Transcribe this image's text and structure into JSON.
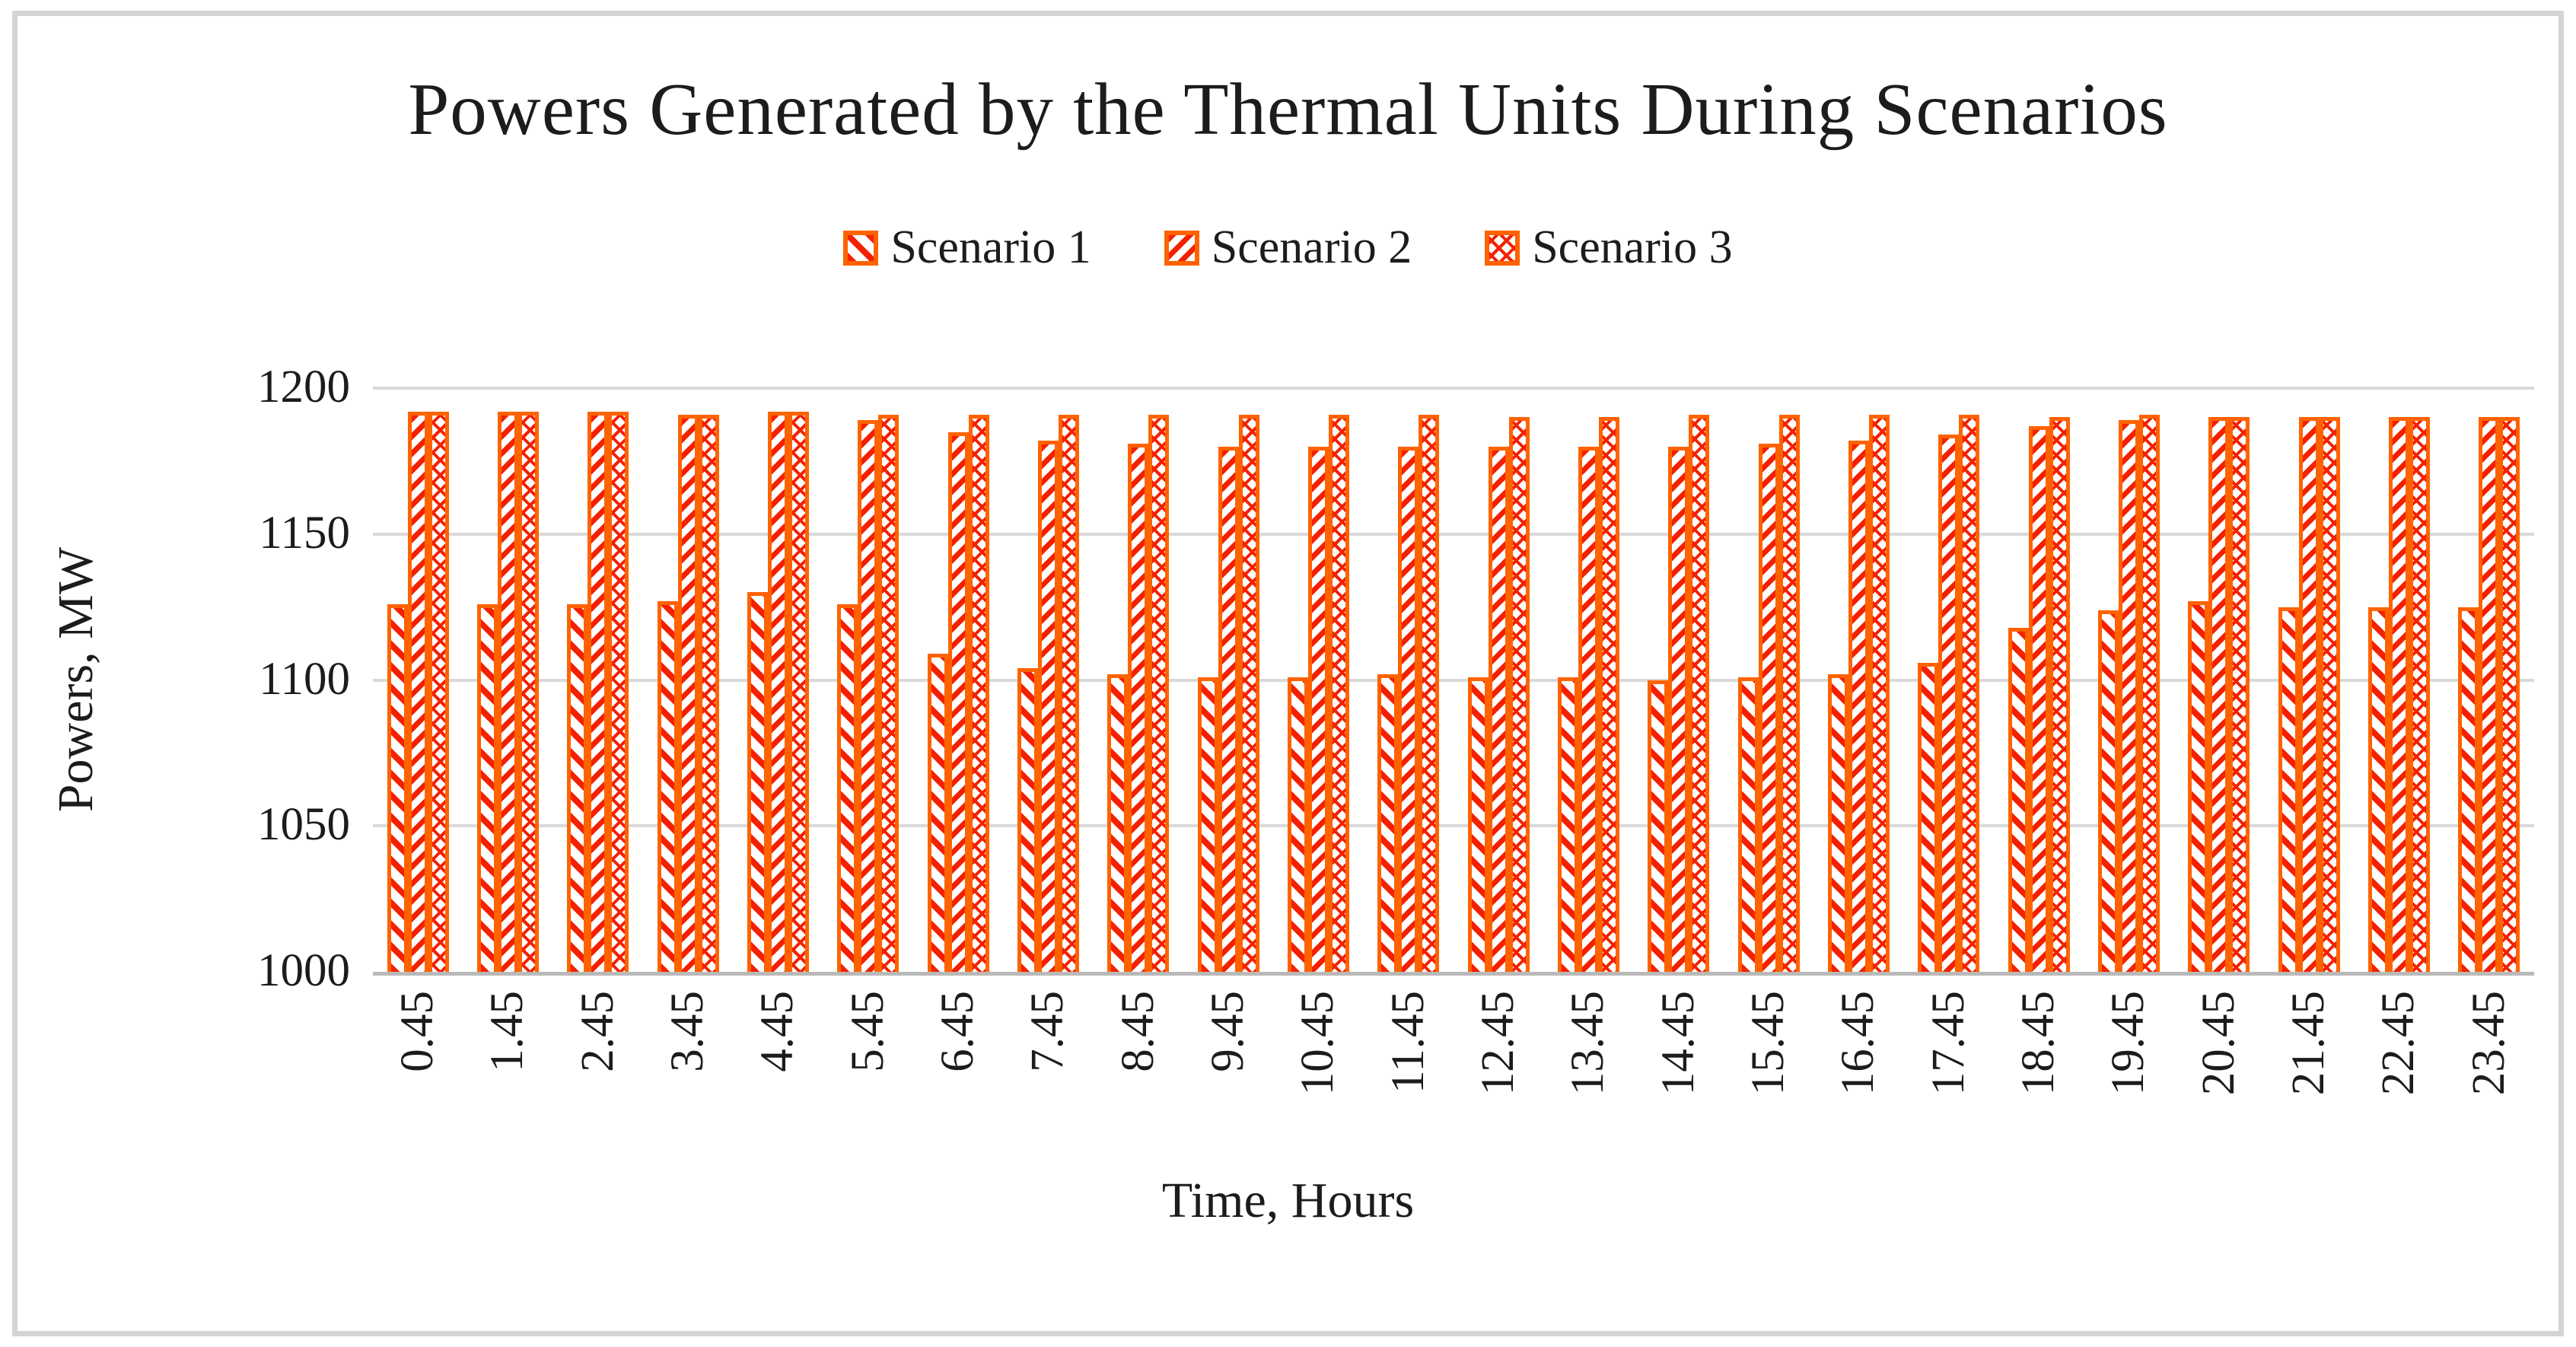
{
  "figure": {
    "title": "Powers Generated by the Thermal Units During Scenarios",
    "x_axis_title": "Time, Hours",
    "y_axis_title": "Powers, MW"
  },
  "legend": {
    "items": [
      {
        "label": "Scenario 1",
        "pattern": "diagonal-stripes-up"
      },
      {
        "label": "Scenario 2",
        "pattern": "diagonal-stripes-down"
      },
      {
        "label": "Scenario 3",
        "pattern": "crosshatch-lattice"
      }
    ]
  },
  "colors": {
    "bar_border_orange": "#ff6200",
    "pattern_red": "#f42000",
    "gridline": "#d9d9d9",
    "axis_line": "#b9b9b9",
    "text": "#1c1c1c",
    "figure_border": "#d4d4d4"
  },
  "chart_data": {
    "type": "bar",
    "title": "Powers Generated by the Thermal Units During Scenarios",
    "xlabel": "Time, Hours",
    "ylabel": "Powers, MW",
    "ylim": [
      1000,
      1200
    ],
    "yticks": [
      1000,
      1050,
      1100,
      1150,
      1200
    ],
    "grid": true,
    "legend_position": "top",
    "categories": [
      "0.45",
      "1.45",
      "2.45",
      "3.45",
      "4.45",
      "5.45",
      "6.45",
      "7.45",
      "8.45",
      "9.45",
      "10.45",
      "11.45",
      "12.45",
      "13.45",
      "14.45",
      "15.45",
      "16.45",
      "17.45",
      "18.45",
      "19.45",
      "20.45",
      "21.45",
      "22.45",
      "23.45"
    ],
    "series": [
      {
        "name": "Scenario 1",
        "values": [
          1126,
          1126,
          1126,
          1127,
          1130,
          1126,
          1109,
          1104,
          1102,
          1101,
          1101,
          1102,
          1101,
          1101,
          1100,
          1101,
          1102,
          1106,
          1118,
          1124,
          1127,
          1125,
          1125,
          1125
        ]
      },
      {
        "name": "Scenario 2",
        "values": [
          1192,
          1192,
          1192,
          1191,
          1192,
          1189,
          1185,
          1182,
          1181,
          1180,
          1180,
          1180,
          1180,
          1180,
          1180,
          1181,
          1182,
          1184,
          1187,
          1189,
          1190,
          1190,
          1190,
          1190
        ]
      },
      {
        "name": "Scenario 3",
        "values": [
          1192,
          1192,
          1192,
          1191,
          1192,
          1191,
          1191,
          1191,
          1191,
          1191,
          1191,
          1191,
          1190,
          1190,
          1191,
          1191,
          1191,
          1191,
          1190,
          1191,
          1190,
          1190,
          1190,
          1190
        ]
      }
    ]
  }
}
